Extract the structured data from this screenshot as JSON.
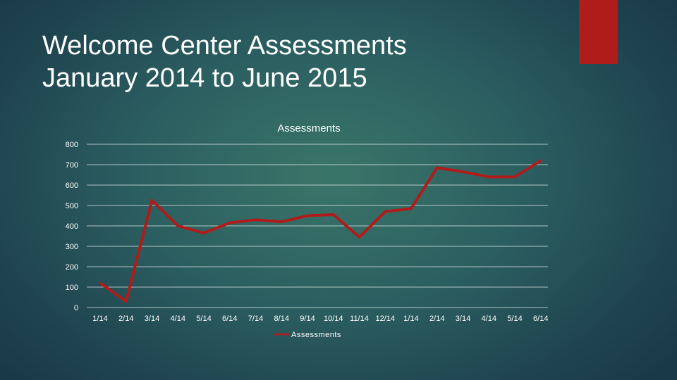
{
  "slide": {
    "title_line1": "Welcome Center Assessments",
    "title_line2": "January 2014 to June 2015",
    "accent_color": "#b01c1a"
  },
  "chart_data": {
    "type": "line",
    "title": "Assessments",
    "xlabel": "",
    "ylabel": "",
    "categories": [
      "1/14",
      "2/14",
      "3/14",
      "4/14",
      "5/14",
      "6/14",
      "7/14",
      "8/14",
      "9/14",
      "10/14",
      "11/14",
      "12/14",
      "1/14",
      "2/14",
      "3/14",
      "4/14",
      "5/14",
      "6/14"
    ],
    "series": [
      {
        "name": "Assessments",
        "color": "#b01c1a",
        "values": [
          120,
          30,
          525,
          400,
          365,
          415,
          430,
          420,
          450,
          455,
          345,
          470,
          485,
          685,
          665,
          640,
          640,
          720
        ]
      }
    ],
    "ylim": [
      0,
      800
    ],
    "yticks": [
      0,
      100,
      200,
      300,
      400,
      500,
      600,
      700,
      800
    ],
    "grid": true,
    "legend_position": "bottom"
  }
}
